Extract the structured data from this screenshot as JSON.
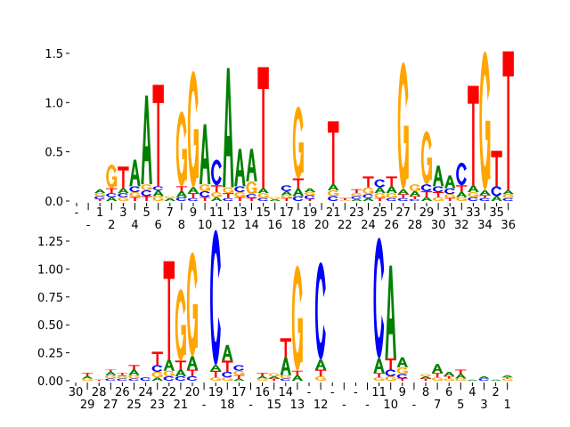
{
  "chart_data": [
    {
      "type": "sequence-logo",
      "title": "",
      "xlabel": "",
      "ylabel": "",
      "ylim": [
        0,
        1.55
      ],
      "yticks": [
        "0.0",
        "0.5",
        "1.0",
        "1.5"
      ],
      "ytick_values": [
        0,
        0.5,
        1.0,
        1.5
      ],
      "grid": false,
      "colors": {
        "A": "#008000",
        "C": "#0000ff",
        "G": "#ffa500",
        "T": "#ff0000"
      },
      "positions": [
        "-",
        "-",
        "1",
        "2",
        "3",
        "4",
        "5",
        "6",
        "7",
        "8",
        "9",
        "10",
        "11",
        "12",
        "13",
        "14",
        "15",
        "16",
        "17",
        "18",
        "19",
        "20",
        "21",
        "22",
        "23",
        "24",
        "25",
        "26",
        "27",
        "28",
        "29",
        "30",
        "31",
        "32",
        "33",
        "34",
        "35",
        "36"
      ],
      "stacks": [
        [],
        [],
        [
          [
            "T",
            0.02
          ],
          [
            "C",
            0.03
          ],
          [
            "G",
            0.03
          ],
          [
            "A",
            0.04
          ]
        ],
        [
          [
            "A",
            0.04
          ],
          [
            "C",
            0.04
          ],
          [
            "T",
            0.05
          ],
          [
            "G",
            0.24
          ]
        ],
        [
          [
            "G",
            0.04
          ],
          [
            "C",
            0.04
          ],
          [
            "A",
            0.05
          ],
          [
            "T",
            0.22
          ]
        ],
        [
          [
            "T",
            0.04
          ],
          [
            "G",
            0.05
          ],
          [
            "C",
            0.06
          ],
          [
            "A",
            0.27
          ]
        ],
        [
          [
            "T",
            0.05
          ],
          [
            "C",
            0.06
          ],
          [
            "G",
            0.06
          ],
          [
            "A",
            0.9
          ]
        ],
        [
          [
            "G",
            0.05
          ],
          [
            "A",
            0.06
          ],
          [
            "C",
            0.04
          ],
          [
            "T",
            1.03
          ]
        ],
        [
          [
            "A",
            0.03
          ],
          [
            "G",
            0.02
          ]
        ],
        [
          [
            "C",
            0.04
          ],
          [
            "A",
            0.06
          ],
          [
            "T",
            0.05
          ],
          [
            "G",
            0.76
          ]
        ],
        [
          [
            "C",
            0.03
          ],
          [
            "T",
            0.05
          ],
          [
            "A",
            0.06
          ],
          [
            "G",
            1.18
          ]
        ],
        [
          [
            "T",
            0.04
          ],
          [
            "C",
            0.06
          ],
          [
            "G",
            0.07
          ],
          [
            "A",
            0.61
          ]
        ],
        [
          [
            "A",
            0.04
          ],
          [
            "G",
            0.05
          ],
          [
            "T",
            0.07
          ],
          [
            "C",
            0.26
          ]
        ],
        [
          [
            "C",
            0.03
          ],
          [
            "T",
            0.05
          ],
          [
            "G",
            0.06
          ],
          [
            "A",
            1.21
          ]
        ],
        [
          [
            "T",
            0.04
          ],
          [
            "G",
            0.05
          ],
          [
            "C",
            0.06
          ],
          [
            "A",
            0.38
          ]
        ],
        [
          [
            "T",
            0.03
          ],
          [
            "C",
            0.04
          ],
          [
            "G",
            0.13
          ],
          [
            "A",
            0.33
          ]
        ],
        [
          [
            "C",
            0.03
          ],
          [
            "G",
            0.05
          ],
          [
            "A",
            0.05
          ],
          [
            "T",
            1.23
          ]
        ],
        [
          [
            "A",
            0.02
          ],
          [
            "G",
            0.02
          ]
        ],
        [
          [
            "T",
            0.03
          ],
          [
            "G",
            0.03
          ],
          [
            "A",
            0.04
          ],
          [
            "C",
            0.06
          ]
        ],
        [
          [
            "C",
            0.05
          ],
          [
            "A",
            0.08
          ],
          [
            "T",
            0.1
          ],
          [
            "G",
            0.73
          ]
        ],
        [
          [
            "T",
            0.02
          ],
          [
            "C",
            0.04
          ],
          [
            "G",
            0.03
          ],
          [
            "A",
            0.04
          ]
        ],
        [],
        [
          [
            "C",
            0.05
          ],
          [
            "G",
            0.06
          ],
          [
            "A",
            0.06
          ],
          [
            "T",
            0.64
          ]
        ],
        [
          [
            "G",
            0.01
          ],
          [
            "T",
            0.02
          ]
        ],
        [
          [
            "A",
            0.02
          ],
          [
            "C",
            0.03
          ],
          [
            "G",
            0.03
          ],
          [
            "T",
            0.04
          ]
        ],
        [
          [
            "A",
            0.03
          ],
          [
            "C",
            0.04
          ],
          [
            "G",
            0.07
          ],
          [
            "T",
            0.11
          ]
        ],
        [
          [
            "T",
            0.03
          ],
          [
            "G",
            0.05
          ],
          [
            "A",
            0.06
          ],
          [
            "C",
            0.08
          ]
        ],
        [
          [
            "C",
            0.03
          ],
          [
            "G",
            0.05
          ],
          [
            "A",
            0.07
          ],
          [
            "T",
            0.1
          ]
        ],
        [
          [
            "C",
            0.03
          ],
          [
            "T",
            0.04
          ],
          [
            "A",
            0.05
          ],
          [
            "G",
            1.29
          ]
        ],
        [
          [
            "C",
            0.02
          ],
          [
            "T",
            0.03
          ],
          [
            "A",
            0.05
          ],
          [
            "G",
            0.07
          ]
        ],
        [
          [
            "A",
            0.04
          ],
          [
            "T",
            0.06
          ],
          [
            "C",
            0.07
          ],
          [
            "G",
            0.54
          ]
        ],
        [
          [
            "G",
            0.04
          ],
          [
            "T",
            0.05
          ],
          [
            "C",
            0.06
          ],
          [
            "A",
            0.21
          ]
        ],
        [
          [
            "T",
            0.03
          ],
          [
            "G",
            0.04
          ],
          [
            "C",
            0.06
          ],
          [
            "A",
            0.13
          ]
        ],
        [
          [
            "G",
            0.04
          ],
          [
            "A",
            0.05
          ],
          [
            "T",
            0.07
          ],
          [
            "C",
            0.23
          ]
        ],
        [
          [
            "C",
            0.04
          ],
          [
            "G",
            0.05
          ],
          [
            "A",
            0.07
          ],
          [
            "T",
            1.01
          ]
        ],
        [
          [
            "C",
            0.03
          ],
          [
            "T",
            0.03
          ],
          [
            "A",
            0.05
          ],
          [
            "G",
            1.41
          ]
        ],
        [
          [
            "A",
            0.05
          ],
          [
            "C",
            0.1
          ],
          [
            "T",
            0.36
          ]
        ],
        [
          [
            "C",
            0.03
          ],
          [
            "G",
            0.04
          ],
          [
            "A",
            0.04
          ],
          [
            "T",
            1.41
          ]
        ]
      ]
    },
    {
      "type": "sequence-logo",
      "title": "",
      "xlabel": "",
      "ylabel": "",
      "ylim": [
        0,
        1.38
      ],
      "yticks": [
        "0.00",
        "0.25",
        "0.50",
        "0.75",
        "1.00",
        "1.25"
      ],
      "ytick_values": [
        0,
        0.25,
        0.5,
        0.75,
        1.0,
        1.25
      ],
      "grid": false,
      "colors": {
        "A": "#008000",
        "C": "#0000ff",
        "G": "#ffa500",
        "T": "#ff0000"
      },
      "positions": [
        "30",
        "29",
        "28",
        "27",
        "26",
        "25",
        "24",
        "23",
        "22",
        "21",
        "20",
        "-",
        "19",
        "18",
        "17",
        "-",
        "16",
        "15",
        "14",
        "13",
        "-",
        "12",
        "-",
        "-",
        "-",
        "-",
        "11",
        "10",
        "9",
        "-",
        "8",
        "7",
        "6",
        "5",
        "4",
        "3",
        "2",
        "1"
      ],
      "stacks": [
        [],
        [
          [
            "G",
            0.02
          ],
          [
            "A",
            0.02
          ],
          [
            "T",
            0.03
          ]
        ],
        [
          [
            "T",
            0.01
          ]
        ],
        [
          [
            "C",
            0.02
          ],
          [
            "G",
            0.03
          ],
          [
            "A",
            0.03
          ],
          [
            "T",
            0.02
          ]
        ],
        [
          [
            "C",
            0.02
          ],
          [
            "G",
            0.02
          ],
          [
            "A",
            0.01
          ],
          [
            "T",
            0.02
          ]
        ],
        [
          [
            "C",
            0.02
          ],
          [
            "G",
            0.03
          ],
          [
            "A",
            0.05
          ],
          [
            "T",
            0.04
          ]
        ],
        [
          [
            "C",
            0.03
          ]
        ],
        [
          [
            "A",
            0.03
          ],
          [
            "G",
            0.05
          ],
          [
            "C",
            0.06
          ],
          [
            "T",
            0.12
          ]
        ],
        [
          [
            "C",
            0.04
          ],
          [
            "G",
            0.05
          ],
          [
            "A",
            0.1
          ],
          [
            "T",
            0.88
          ]
        ],
        [
          [
            "C",
            0.04
          ],
          [
            "A",
            0.06
          ],
          [
            "T",
            0.08
          ],
          [
            "G",
            0.64
          ]
        ],
        [
          [
            "C",
            0.04
          ],
          [
            "T",
            0.06
          ],
          [
            "A",
            0.12
          ],
          [
            "G",
            0.93
          ]
        ],
        [],
        [
          [
            "G",
            0.03
          ],
          [
            "T",
            0.06
          ],
          [
            "A",
            0.05
          ],
          [
            "C",
            1.21
          ]
        ],
        [
          [
            "G",
            0.03
          ],
          [
            "C",
            0.05
          ],
          [
            "T",
            0.1
          ],
          [
            "A",
            0.14
          ]
        ],
        [
          [
            "A",
            0.02
          ],
          [
            "T",
            0.03
          ],
          [
            "G",
            0.04
          ],
          [
            "C",
            0.05
          ]
        ],
        [],
        [
          [
            "G",
            0.02
          ],
          [
            "A",
            0.02
          ],
          [
            "T",
            0.03
          ]
        ],
        [
          [
            "T",
            0.02
          ],
          [
            "A",
            0.02
          ],
          [
            "G",
            0.03
          ]
        ],
        [
          [
            "C",
            0.02
          ],
          [
            "G",
            0.03
          ],
          [
            "A",
            0.16
          ],
          [
            "T",
            0.17
          ]
        ],
        [
          [
            "A",
            0.05
          ],
          [
            "T",
            0.04
          ],
          [
            "G",
            0.94
          ]
        ],
        [],
        [
          [
            "G",
            0.04
          ],
          [
            "T",
            0.06
          ],
          [
            "A",
            0.09
          ],
          [
            "C",
            0.87
          ]
        ],
        [],
        [],
        [],
        [],
        [
          [
            "G",
            0.03
          ],
          [
            "T",
            0.04
          ],
          [
            "A",
            0.13
          ],
          [
            "C",
            1.08
          ]
        ],
        [
          [
            "G",
            0.04
          ],
          [
            "C",
            0.06
          ],
          [
            "T",
            0.1
          ],
          [
            "A",
            0.83
          ]
        ],
        [
          [
            "T",
            0.02
          ],
          [
            "C",
            0.04
          ],
          [
            "G",
            0.06
          ],
          [
            "A",
            0.09
          ]
        ],
        [],
        [
          [
            "T",
            0.02
          ],
          [
            "A",
            0.02
          ],
          [
            "G",
            0.02
          ]
        ],
        [
          [
            "G",
            0.03
          ],
          [
            "T",
            0.04
          ],
          [
            "A",
            0.08
          ]
        ],
        [
          [
            "G",
            0.02
          ],
          [
            "T",
            0.02
          ],
          [
            "A",
            0.04
          ]
        ],
        [
          [
            "G",
            0.02
          ],
          [
            "A",
            0.04
          ],
          [
            "T",
            0.04
          ]
        ],
        [
          [
            "A",
            0.01
          ]
        ],
        [
          [
            "C",
            0.02
          ],
          [
            "A",
            0.02
          ]
        ],
        [
          [
            "A",
            0.01
          ]
        ],
        [
          [
            "G",
            0.02
          ],
          [
            "T",
            0.01
          ],
          [
            "A",
            0.02
          ]
        ]
      ]
    }
  ]
}
